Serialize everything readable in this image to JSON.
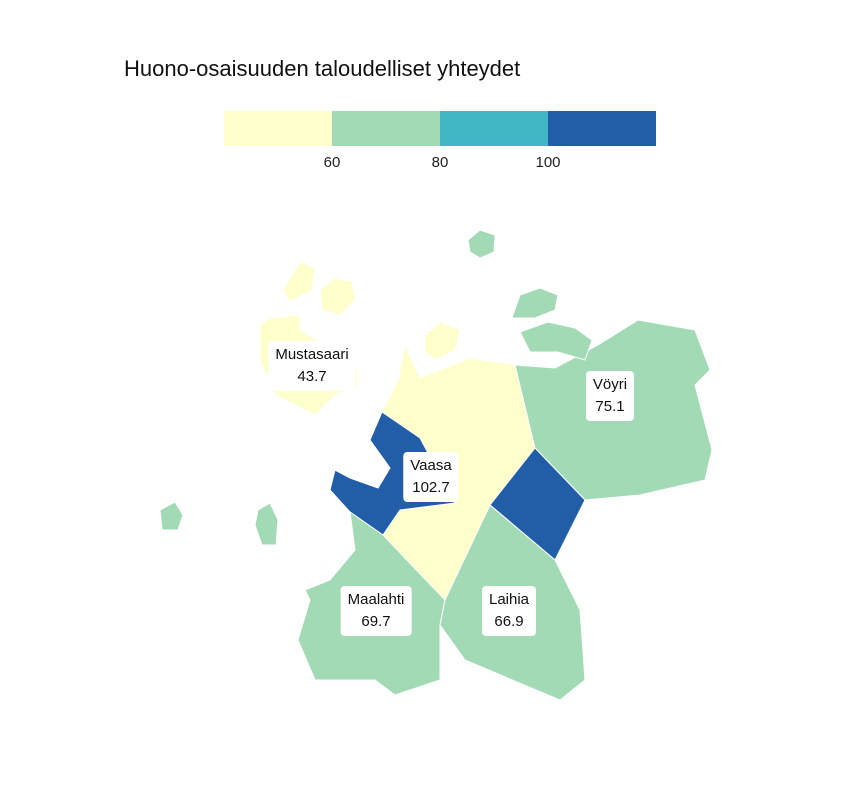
{
  "title": "Huono-osaisuuden taloudelliset yhteydet",
  "legend": {
    "colors": [
      "#ffffcc",
      "#a1dab4",
      "#41b6c4",
      "#225ea8"
    ],
    "ticks": [
      "60",
      "80",
      "100"
    ]
  },
  "chart_data": {
    "type": "choropleth",
    "title": "Huono-osaisuuden taloudelliset yhteydet",
    "breaks": [
      60,
      80,
      100
    ],
    "regions": [
      {
        "name": "Mustasaari",
        "value": 43.7,
        "display": "43.7"
      },
      {
        "name": "Vöyri",
        "value": 75.1,
        "display": "75.1"
      },
      {
        "name": "Vaasa",
        "value": 102.7,
        "display": "102.7"
      },
      {
        "name": "Maalahti",
        "value": 69.7,
        "display": "69.7"
      },
      {
        "name": "Laihia",
        "value": 66.9,
        "display": "66.9"
      }
    ]
  }
}
